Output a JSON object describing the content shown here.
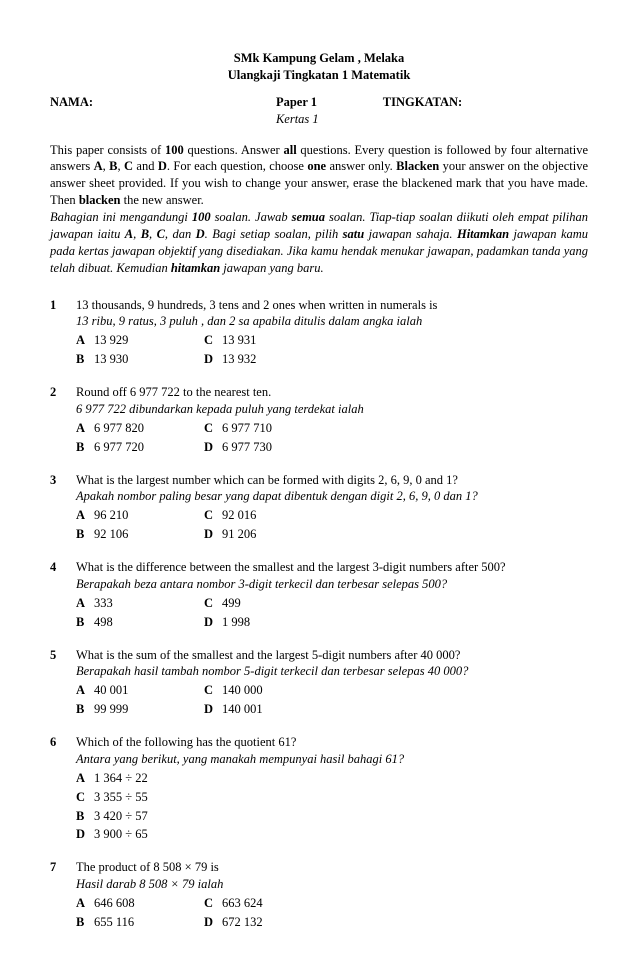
{
  "header": {
    "line1": "SMk Kampung Gelam , Melaka",
    "line2": "Ulangkaji Tingkatan 1 Matematik",
    "nama_label": "NAMA:",
    "paper_label": "Paper 1",
    "kertas_label": "Kertas 1",
    "tingkatan_label": "TINGKATAN:"
  },
  "instructions": {
    "en_parts": [
      "This paper consists of ",
      "100",
      " questions. Answer ",
      "all",
      " questions. Every question is followed by four alternative answers ",
      "A",
      ", ",
      "B",
      ", ",
      "C",
      " and ",
      "D",
      ". For each question, choose ",
      "one",
      " answer only. ",
      "Blacken",
      " your answer on the objective answer sheet provided. If you wish to change your answer, erase the blackened mark that you have made. Then ",
      "blacken",
      " the new answer."
    ],
    "ms_parts": [
      "Bahagian ini mengandungi ",
      "100",
      " soalan. Jawab ",
      "semua",
      " soalan. Tiap-tiap soalan diikuti oleh empat pilihan jawapan iaitu ",
      "A",
      ", ",
      "B",
      ", ",
      "C",
      ", dan ",
      "D",
      ". Bagi setiap soalan, pilih ",
      "satu",
      " jawapan sahaja. ",
      "Hitamkan",
      " jawapan kamu pada kertas jawapan objektif yang disediakan. Jika kamu hendak menukar jawapan, padamkan tanda yang telah dibuat. Kemudian ",
      "hitamkan",
      " jawapan yang baru."
    ]
  },
  "questions": [
    {
      "n": "1",
      "text": "13 thousands, 9 hundreds, 3 tens and 2 ones when written in numerals is",
      "sub": "13 ribu, 9 ratus, 3 puluh , dan 2 sa apabila ditulis dalam angka ialah",
      "layout": "grid",
      "opts": {
        "A": "13 929",
        "B": "13 930",
        "C": "13 931",
        "D": "13 932"
      }
    },
    {
      "n": "2",
      "text": "Round off 6 977 722 to the nearest ten.",
      "sub": "6 977 722 dibundarkan kepada puluh yang terdekat ialah",
      "layout": "grid",
      "opts": {
        "A": "6 977 820",
        "B": "6 977 720",
        "C": "6 977 710",
        "D": "6 977 730"
      }
    },
    {
      "n": "3",
      "text": "What is the largest number which can be formed with digits 2, 6, 9, 0 and 1?",
      "sub": "Apakah nombor paling besar yang dapat dibentuk dengan digit 2, 6, 9, 0 dan 1?",
      "layout": "grid",
      "opts": {
        "A": "96 210",
        "B": "92 106",
        "C": "92 016",
        "D": "91 206"
      }
    },
    {
      "n": "4",
      "text": "What is the difference between the smallest and the largest 3-digit numbers after 500?",
      "sub": "Berapakah beza antara nombor 3-digit terkecil dan terbesar selepas 500?",
      "layout": "grid",
      "opts": {
        "A": "333",
        "B": "498",
        "C": "499",
        "D": "1 998"
      }
    },
    {
      "n": "5",
      "text": "What is the sum of the smallest and the largest 5-digit numbers after 40 000?",
      "sub": "Berapakah hasil tambah nombor 5-digit terkecil dan terbesar selepas 40 000?",
      "layout": "grid",
      "opts": {
        "A": "40 001",
        "B": "99 999",
        "C": "140 000",
        "D": "140 001"
      }
    },
    {
      "n": "6",
      "text": "Which of the following has the quotient 61?",
      "sub": "Antara yang berikut, yang manakah mempunyai hasil bahagi 61?",
      "layout": "col",
      "opts": {
        "A": "1 364 ÷ 22",
        "C": "3 355 ÷ 55",
        "B": "3 420 ÷ 57",
        "D": "3 900 ÷ 65"
      }
    },
    {
      "n": "7",
      "text": "The product of 8 508 × 79 is",
      "sub": "Hasil darab 8 508 × 79 ialah",
      "layout": "grid",
      "opts": {
        "A": "646 608",
        "B": "655 116",
        "C": "663 624",
        "D": "672 132"
      }
    }
  ]
}
